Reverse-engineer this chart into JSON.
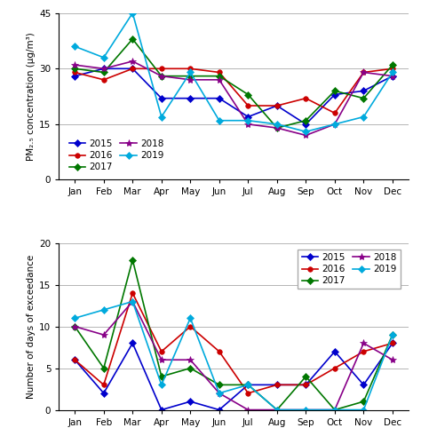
{
  "months": [
    "Jan",
    "Feb",
    "Mar",
    "Apr",
    "May",
    "Jun",
    "Jul",
    "Aug",
    "Sep",
    "Oct",
    "Nov",
    "Dec"
  ],
  "pm25": {
    "2015": [
      28,
      30,
      30,
      22,
      22,
      22,
      17,
      20,
      15,
      23,
      24,
      28
    ],
    "2016": [
      29,
      27,
      30,
      30,
      30,
      29,
      20,
      20,
      22,
      18,
      29,
      30
    ],
    "2017": [
      30,
      29,
      38,
      28,
      28,
      28,
      23,
      14,
      16,
      24,
      22,
      31
    ],
    "2018": [
      31,
      30,
      32,
      28,
      27,
      27,
      15,
      14,
      12,
      15,
      29,
      28
    ],
    "2019": [
      36,
      33,
      45,
      17,
      29,
      16,
      16,
      15,
      13,
      15,
      17,
      29
    ]
  },
  "exceed": {
    "2015": [
      6,
      2,
      8,
      0,
      1,
      0,
      3,
      3,
      3,
      7,
      3,
      8
    ],
    "2016": [
      6,
      3,
      14,
      7,
      10,
      7,
      2,
      3,
      3,
      5,
      7,
      8
    ],
    "2017": [
      10,
      5,
      18,
      4,
      5,
      3,
      3,
      0,
      4,
      0,
      1,
      9
    ],
    "2018": [
      10,
      9,
      13,
      6,
      6,
      2,
      0,
      0,
      0,
      0,
      8,
      6
    ],
    "2019": [
      11,
      12,
      13,
      3,
      11,
      2,
      3,
      0,
      0,
      0,
      0,
      9
    ]
  },
  "colors": {
    "2015": "#0000CC",
    "2016": "#CC0000",
    "2017": "#007700",
    "2018": "#880088",
    "2019": "#00AADD"
  },
  "markers": {
    "2015": "D",
    "2016": "o",
    "2017": "D",
    "2018": "*",
    "2019": "D"
  },
  "pm25_ylim": [
    0,
    45
  ],
  "pm25_yticks": [
    0,
    15,
    30,
    45
  ],
  "exceed_ylim": [
    0,
    20
  ],
  "exceed_yticks": [
    0,
    5,
    10,
    15,
    20
  ],
  "pm25_ylabel": "PM₂.₅ concentration (μg/m³)",
  "exceed_ylabel": "Number of days of exceedance",
  "legend_order_col1": [
    "2015",
    "2017",
    "2019"
  ],
  "legend_order_col2": [
    "2016",
    "2018"
  ]
}
